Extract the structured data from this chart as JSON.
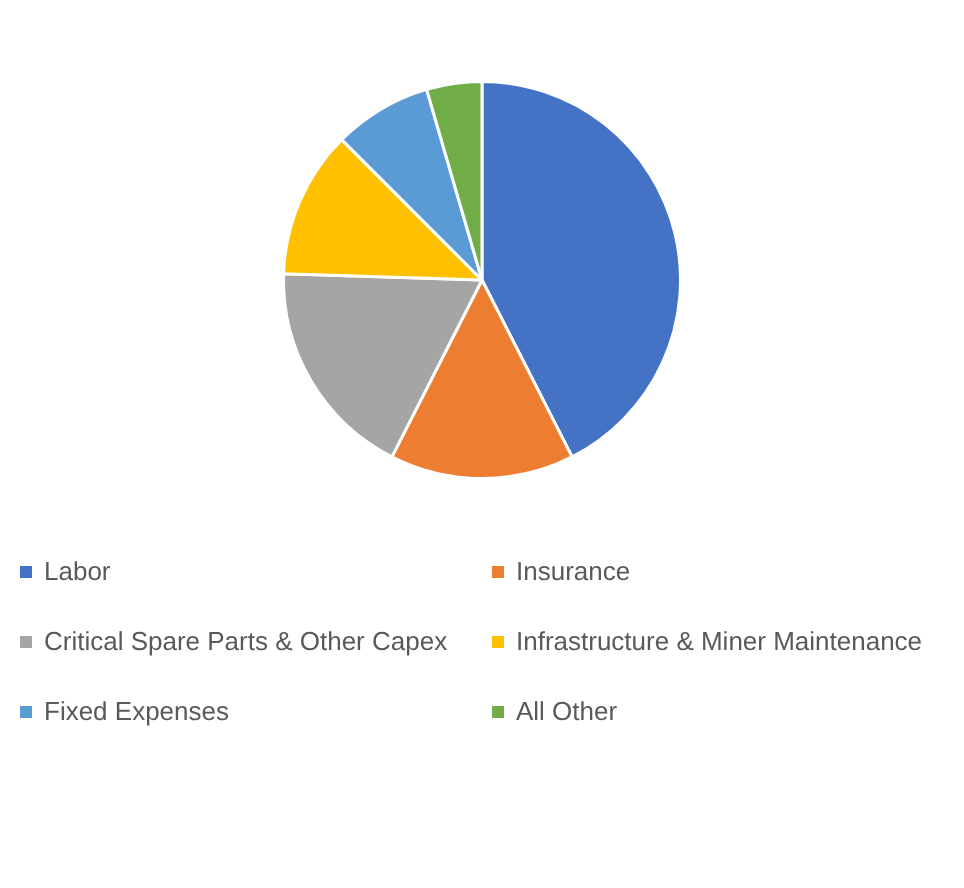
{
  "chart_data": {
    "type": "pie",
    "categories": [
      "Labor",
      "Insurance",
      "Critical Spare Parts & Other Capex",
      "Infrastructure & Miner Maintenance",
      "Fixed Expenses",
      "All Other"
    ],
    "values": [
      42.5,
      15,
      18,
      12,
      8,
      4.5
    ],
    "colors": [
      "#4472c4",
      "#ed7d31",
      "#a5a5a5",
      "#ffc000",
      "#5b9bd5",
      "#70ad47"
    ],
    "legend": "bottom"
  }
}
